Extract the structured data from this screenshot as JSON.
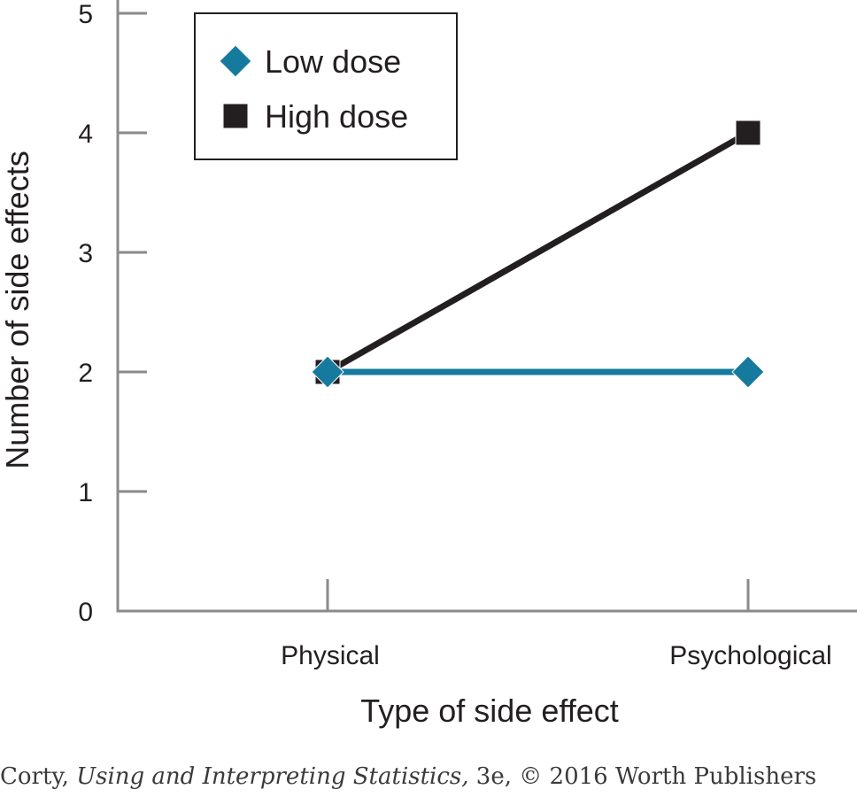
{
  "chart_data": {
    "type": "line",
    "xlabel": "Type of side effect",
    "ylabel": "Number of side effects",
    "categories": [
      "Physical",
      "Psychological"
    ],
    "ylim": [
      0,
      5
    ],
    "yticks": [
      "0",
      "1",
      "2",
      "3",
      "4",
      "5"
    ],
    "series": [
      {
        "name": "Low dose",
        "values": [
          2,
          2
        ],
        "color": "#157a9e",
        "marker": "diamond"
      },
      {
        "name": "High dose",
        "values": [
          2,
          4
        ],
        "color": "#231f20",
        "marker": "square"
      }
    ],
    "legend": {
      "position": "top-left",
      "frame": true
    },
    "grid": false
  },
  "credit": {
    "prefix": "Corty, ",
    "title": "Using and Interpreting Statistics,",
    "suffix": " 3e, © 2016 Worth Publishers"
  }
}
